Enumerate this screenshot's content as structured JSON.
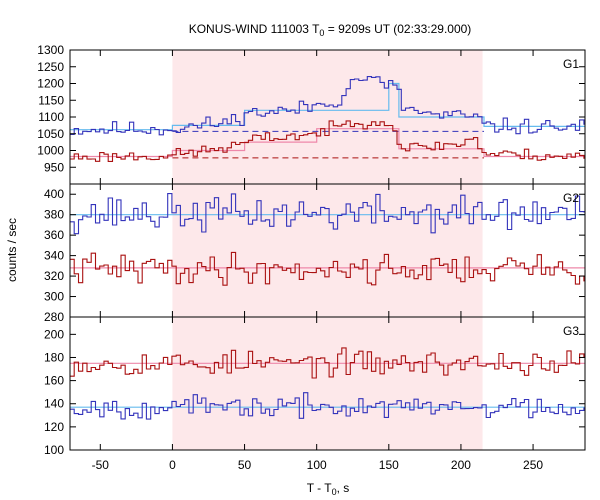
{
  "chart_data": {
    "type": "line",
    "title_main": "KONUS-WIND 111003 T",
    "title_sub": "0",
    "title_rest": " = 9209s UT (02:33:29.000)",
    "xlabel_main": "T - T",
    "xlabel_sub": "0",
    "xlabel_rest": ", s",
    "ylabel": "counts / sec",
    "xlim": [
      -71,
      286
    ],
    "xticks": [
      -50,
      0,
      50,
      100,
      150,
      200,
      250
    ],
    "bin_width": 2.944,
    "shaded_interval": [
      0,
      215
    ],
    "grid": false,
    "colors": {
      "blue_series": "#3333bb",
      "red_series": "#aa1111",
      "fit_blue": "#66bbee",
      "fit_red": "#ee88aa",
      "shade": "#fde8ea"
    },
    "panels": [
      {
        "label": "G1",
        "ylim": [
          900,
          1300
        ],
        "yticks": [
          950,
          1000,
          1050,
          1100,
          1150,
          1200,
          1250,
          1300
        ],
        "series": [
          {
            "color": "blue",
            "profile": [
              [
                -71,
                1062
              ],
              [
                0,
                1065
              ],
              [
                40,
                1085
              ],
              [
                50,
                1110
              ],
              [
                85,
                1120
              ],
              [
                115,
                1150
              ],
              [
                122,
                1190
              ],
              [
                130,
                1220
              ],
              [
                155,
                1190
              ],
              [
                160,
                1130
              ],
              [
                180,
                1105
              ],
              [
                212,
                1100
              ],
              [
                216,
                1072
              ],
              [
                286,
                1070
              ]
            ],
            "noise_amplitude": 17,
            "seed": 11
          },
          {
            "color": "red",
            "profile": [
              [
                -71,
                980
              ],
              [
                0,
                985
              ],
              [
                40,
                1010
              ],
              [
                60,
                1035
              ],
              [
                100,
                1050
              ],
              [
                125,
                1085
              ],
              [
                145,
                1090
              ],
              [
                155,
                1060
              ],
              [
                160,
                1005
              ],
              [
                200,
                1020
              ],
              [
                210,
                1040
              ],
              [
                216,
                990
              ],
              [
                286,
                982
              ]
            ],
            "noise_amplitude": 13,
            "seed": 23
          }
        ],
        "fits": [
          {
            "color": "blue",
            "kind": "steps",
            "steps": [
              [
                -71,
                1062
              ],
              [
                0,
                1075
              ],
              [
                50,
                1120
              ],
              [
                150,
                1200
              ],
              [
                157,
                1100
              ],
              [
                216,
                1072
              ],
              [
                286,
                1072
              ]
            ]
          },
          {
            "color": "red",
            "kind": "steps",
            "steps": [
              [
                -71,
                982
              ],
              [
                0,
                1000
              ],
              [
                50,
                1025
              ],
              [
                100,
                1065
              ],
              [
                157,
                1005
              ],
              [
                216,
                982
              ],
              [
                286,
                982
              ]
            ]
          }
        ],
        "dashed_levels": [
          {
            "color": "blue",
            "value": 1057,
            "range": [
              0,
              216
            ]
          },
          {
            "color": "red",
            "value": 978,
            "range": [
              0,
              216
            ]
          }
        ]
      },
      {
        "label": "G2",
        "ylim": [
          280,
          410
        ],
        "yticks": [
          280,
          300,
          320,
          340,
          360,
          380,
          400
        ],
        "series": [
          {
            "color": "blue",
            "profile": [
              [
                -71,
                381
              ],
              [
                286,
                381
              ]
            ],
            "noise_amplitude": 13,
            "seed": 37
          },
          {
            "color": "red",
            "profile": [
              [
                -71,
                327
              ],
              [
                286,
                327
              ]
            ],
            "noise_amplitude": 11,
            "seed": 41
          }
        ],
        "fits": [
          {
            "color": "blue",
            "kind": "steps",
            "steps": [
              [
                -71,
                380
              ],
              [
                286,
                380
              ]
            ]
          },
          {
            "color": "red",
            "kind": "steps",
            "steps": [
              [
                -71,
                328
              ],
              [
                286,
                328
              ]
            ]
          }
        ],
        "dashed_levels": []
      },
      {
        "label": "G3",
        "ylim": [
          100,
          215
        ],
        "yticks": [
          100,
          120,
          140,
          160,
          180,
          200
        ],
        "series": [
          {
            "color": "red",
            "profile": [
              [
                -71,
                175
              ],
              [
                286,
                175
              ]
            ],
            "noise_amplitude": 8,
            "seed": 53
          },
          {
            "color": "blue",
            "profile": [
              [
                -71,
                137
              ],
              [
                286,
                137
              ]
            ],
            "noise_amplitude": 7,
            "seed": 67
          }
        ],
        "fits": [
          {
            "color": "red",
            "kind": "steps",
            "steps": [
              [
                -71,
                175
              ],
              [
                286,
                175
              ]
            ]
          },
          {
            "color": "blue",
            "kind": "steps",
            "steps": [
              [
                -71,
                137
              ],
              [
                286,
                137
              ]
            ]
          }
        ],
        "dashed_levels": []
      }
    ]
  }
}
